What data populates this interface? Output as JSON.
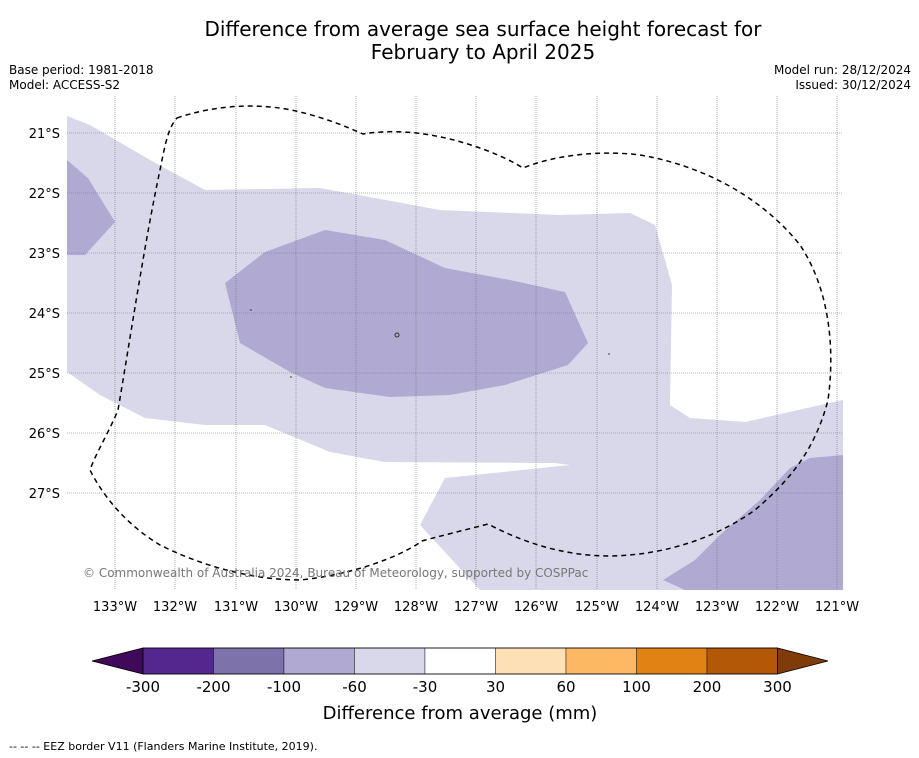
{
  "title_line1": "Difference from average sea surface height forecast for",
  "title_line2": "February to April 2025",
  "meta_left": [
    "Base period: 1981-2018",
    "Model: ACCESS-S2"
  ],
  "meta_right": [
    "Model run: 28/12/2024",
    "Issued: 30/12/2024"
  ],
  "map": {
    "lat_labels": [
      "21°S",
      "22°S",
      "23°S",
      "24°S",
      "25°S",
      "26°S",
      "27°S"
    ],
    "lon_labels": [
      "133°W",
      "132°W",
      "131°W",
      "130°W",
      "129°W",
      "128°W",
      "127°W",
      "126°W",
      "125°W",
      "124°W",
      "123°W",
      "122°W",
      "121°W"
    ],
    "copyright": "© Commonwealth of Australia 2024, Bureau of Meteorology, supported by COSPPac",
    "fill_colors": {
      "light": "#d8d8ea",
      "medium": "#b0aad2",
      "ocean": "#ffffff"
    }
  },
  "colorbar": {
    "tick_labels": [
      "-300",
      "-200",
      "-100",
      "-60",
      "-30",
      "30",
      "60",
      "100",
      "200",
      "300"
    ],
    "colors": [
      "#3f0a5a",
      "#54278f",
      "#7e72ab",
      "#b0aad2",
      "#d8d8ea",
      "#ffffff",
      "#fee0b6",
      "#fdb863",
      "#e08214",
      "#b35806",
      "#7f3b08"
    ],
    "title": "Difference from average (mm)"
  },
  "footnote": "--  --  -- EEZ border V11 (Flanders Marine Institute, 2019)."
}
